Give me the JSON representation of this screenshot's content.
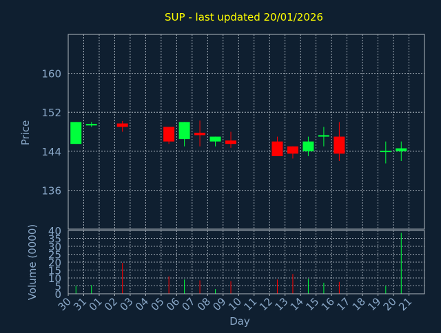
{
  "chart_data": {
    "type": "candlestick",
    "title": "SUP - last updated 20/01/2026",
    "ylabel": "Price",
    "volume_ylabel": "Volume (0000)",
    "xlabel": "Day",
    "x_ticks": [
      "30",
      "31",
      "01",
      "02",
      "03",
      "04",
      "05",
      "06",
      "07",
      "08",
      "09",
      "10",
      "11",
      "12",
      "13",
      "14",
      "15",
      "16",
      "17",
      "18",
      "19",
      "20",
      "21"
    ],
    "price_axis": {
      "ylim": [
        128,
        168
      ],
      "ticks": [
        136,
        144,
        152,
        160
      ]
    },
    "volume_axis": {
      "ylim": [
        0,
        40
      ],
      "ticks": [
        0,
        5,
        10,
        15,
        20,
        25,
        30,
        35,
        40
      ]
    },
    "grid": true,
    "candles": [
      {
        "day": "30",
        "open": 145.5,
        "close": 150.0,
        "high": 150.0,
        "low": 145.5,
        "volume": 5.0
      },
      {
        "day": "31",
        "open": 149.3,
        "close": 149.6,
        "high": 150.0,
        "low": 149.0,
        "volume": 5.5
      },
      {
        "day": "02",
        "open": 149.7,
        "close": 149.0,
        "high": 150.2,
        "low": 148.0,
        "volume": 19.5
      },
      {
        "day": "05",
        "open": 149.0,
        "close": 146.0,
        "high": 149.0,
        "low": 145.5,
        "volume": 11.0
      },
      {
        "day": "06",
        "open": 146.5,
        "close": 150.0,
        "high": 150.0,
        "low": 145.0,
        "volume": 9.0
      },
      {
        "day": "07",
        "open": 147.8,
        "close": 147.3,
        "high": 150.3,
        "low": 145.0,
        "volume": 8.5
      },
      {
        "day": "08",
        "open": 146.0,
        "close": 147.0,
        "high": 147.0,
        "low": 145.0,
        "volume": 3.0
      },
      {
        "day": "09",
        "open": 146.2,
        "close": 145.5,
        "high": 148.0,
        "low": 144.7,
        "volume": 8.0
      },
      {
        "day": "12",
        "open": 146.0,
        "close": 143.0,
        "high": 147.0,
        "low": 143.0,
        "volume": 9.0
      },
      {
        "day": "13",
        "open": 145.0,
        "close": 143.5,
        "high": 145.0,
        "low": 142.5,
        "volume": 12.5
      },
      {
        "day": "14",
        "open": 144.0,
        "close": 146.0,
        "high": 147.0,
        "low": 143.0,
        "volume": 9.5
      },
      {
        "day": "15",
        "open": 147.0,
        "close": 147.3,
        "high": 149.0,
        "low": 145.0,
        "volume": 7.0
      },
      {
        "day": "16",
        "open": 147.0,
        "close": 143.5,
        "high": 150.0,
        "low": 142.0,
        "volume": 7.5
      },
      {
        "day": "19",
        "open": 143.9,
        "close": 144.1,
        "high": 146.0,
        "low": 141.5,
        "volume": 5.0
      },
      {
        "day": "20",
        "open": 144.0,
        "close": 144.6,
        "high": 146.0,
        "low": 142.0,
        "volume": 38.5
      }
    ]
  },
  "colors": {
    "background": "#0f1f30",
    "title": "#ffff00",
    "axis_text": "#8aa8c8",
    "up": "#00ff3c",
    "down": "#ff0000",
    "grid": "#c8d0d8",
    "frame": "#b0b8c0"
  }
}
